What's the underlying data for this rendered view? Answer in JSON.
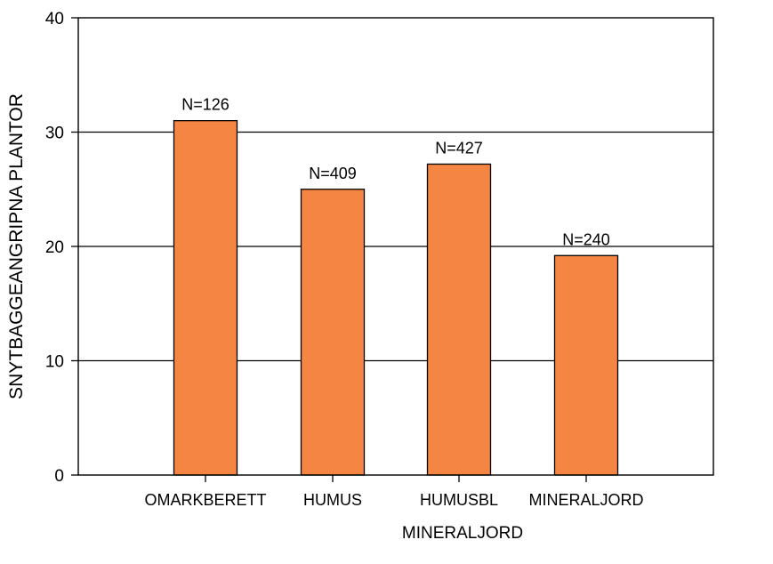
{
  "chart_data": {
    "type": "bar",
    "title": "",
    "xlabel": "MINERALJORD",
    "ylabel": "SNYTBAGGEANGRIPNA PLANTOR",
    "categories": [
      "OMARKBERETT",
      "HUMUS",
      "HUMUSBL",
      "MINERALJORD"
    ],
    "values": [
      31,
      25,
      27.2,
      19.2
    ],
    "annotations": [
      "N=126",
      "N=409",
      "N=427",
      "N=240"
    ],
    "ylim": [
      0,
      40
    ],
    "yticks": [
      0,
      10,
      20,
      30,
      40
    ],
    "grid": "horizontal",
    "bar_color": "#f58542",
    "bar_edge_color": "#000000"
  }
}
